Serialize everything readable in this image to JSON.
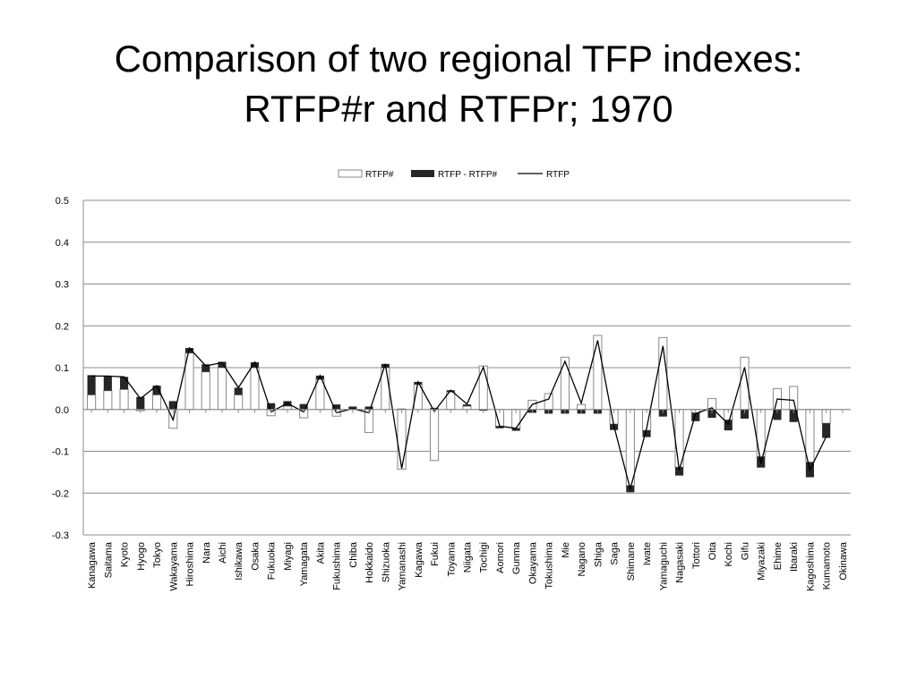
{
  "slide": {
    "title_line1": "Comparison of two regional TFP indexes:",
    "title_line2": "RTFP#r and RTFPr; 1970"
  },
  "chart_data": {
    "type": "bar",
    "stacked": true,
    "ylim": [
      -0.3,
      0.5
    ],
    "yticks": [
      0.5,
      0.4,
      0.3,
      0.2,
      0.1,
      0.0,
      -0.1,
      -0.2,
      -0.3
    ],
    "ytick_labels": [
      "0.5",
      "0.4",
      "0.3",
      "0.2",
      "0.1",
      "0.0",
      "-0.1",
      "-0.2",
      "-0.3"
    ],
    "grid": true,
    "legend_position": "top-center",
    "categories": [
      "Kanagawa",
      "Saitama",
      "Kyoto",
      "Hyogo",
      "Tokyo",
      "Wakayama",
      "Hiroshima",
      "Nara",
      "Aichi",
      "Ishikawa",
      "Osaka",
      "Fukuoka",
      "Miyagi",
      "Yamagata",
      "Akita",
      "Fukushima",
      "Chiba",
      "Hokkaido",
      "Shizuoka",
      "Yamanashi",
      "Kagawa",
      "Fukui",
      "Toyama",
      "Niigata",
      "Tochigi",
      "Aomori",
      "Gunma",
      "Okayama",
      "Tokushima",
      "Mie",
      "Nagano",
      "Shiga",
      "Saga",
      "Shimane",
      "Iwate",
      "Yamaguchi",
      "Nagasaki",
      "Tottori",
      "Oita",
      "Kochi",
      "Gifu",
      "Miyazaki",
      "Ehime",
      "Ibaraki",
      "Kagoshima",
      "Kumamoto",
      "Okinawa"
    ],
    "series": [
      {
        "name": "RTFP#",
        "kind": "bar",
        "color": "#ffffff",
        "stroke": "#888888",
        "values": [
          0.035,
          0.045,
          0.048,
          -0.003,
          0.035,
          -0.045,
          0.135,
          0.09,
          0.1,
          0.035,
          0.1,
          -0.015,
          0.008,
          -0.02,
          0.072,
          -0.016,
          0.0,
          -0.055,
          0.1,
          -0.143,
          0.06,
          -0.122,
          0.042,
          0.008,
          0.104,
          -0.04,
          -0.045,
          0.022,
          0.038,
          0.125,
          0.012,
          0.177,
          -0.035,
          -0.182,
          -0.05,
          0.172,
          -0.138,
          -0.008,
          0.026,
          -0.025,
          0.125,
          -0.113,
          0.05,
          0.055,
          -0.126,
          -0.033,
          0.0
        ]
      },
      {
        "name": "RTFP - RTFP#",
        "kind": "bar",
        "color": "#262626",
        "values": [
          0.047,
          0.035,
          0.03,
          0.03,
          0.022,
          0.02,
          0.012,
          0.018,
          0.014,
          0.017,
          0.013,
          0.015,
          0.012,
          0.013,
          0.009,
          0.012,
          0.007,
          0.007,
          0.009,
          0.002,
          0.006,
          0.004,
          0.004,
          0.004,
          -0.003,
          -0.005,
          -0.006,
          -0.008,
          -0.01,
          -0.01,
          -0.01,
          -0.01,
          -0.014,
          -0.016,
          -0.016,
          -0.017,
          -0.02,
          -0.02,
          -0.02,
          -0.025,
          -0.022,
          -0.026,
          -0.025,
          -0.03,
          -0.036,
          -0.035,
          0.0
        ]
      },
      {
        "name": "RTFP",
        "kind": "line",
        "color": "#000000",
        "values": [
          0.08,
          0.08,
          0.078,
          0.026,
          0.057,
          -0.025,
          0.147,
          0.104,
          0.112,
          0.052,
          0.113,
          -0.006,
          0.015,
          -0.006,
          0.081,
          -0.008,
          0.002,
          -0.008,
          0.109,
          -0.141,
          0.066,
          -0.005,
          0.046,
          0.013,
          0.101,
          -0.04,
          -0.045,
          0.012,
          0.025,
          0.115,
          0.015,
          0.165,
          -0.04,
          -0.19,
          -0.045,
          0.152,
          -0.145,
          -0.01,
          0.004,
          -0.035,
          0.101,
          -0.13,
          0.025,
          0.022,
          -0.145,
          -0.065,
          null
        ]
      }
    ]
  }
}
